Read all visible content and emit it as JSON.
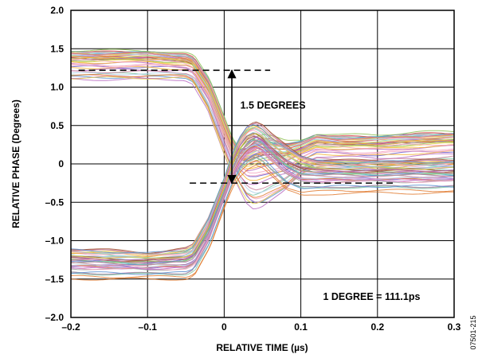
{
  "chart_data": {
    "type": "line",
    "xlabel": "RELATIVE TIME (µs)",
    "ylabel": "RELATIVE PHASE (Degrees)",
    "xlim": [
      -0.2,
      0.3
    ],
    "ylim": [
      -2.0,
      2.0
    ],
    "x_ticks": [
      -0.2,
      -0.1,
      0,
      0.1,
      0.2,
      0.3
    ],
    "x_tick_labels": [
      "–0.2",
      "–0.1",
      "0",
      "0.1",
      "0.2",
      "0.3"
    ],
    "y_ticks": [
      -2.0,
      -1.5,
      -1.0,
      -0.5,
      0,
      0.5,
      1.0,
      1.5,
      2.0
    ],
    "y_tick_labels": [
      "–2.0",
      "–1.5",
      "–1.0",
      "–0.5",
      "0",
      "0.5",
      "1.0",
      "1.5",
      "2.0"
    ],
    "grid": true,
    "envelope": {
      "description_series": "overlaid traces",
      "upper_group": {
        "x": [
          -0.2,
          -0.15,
          -0.1,
          -0.05,
          -0.04,
          -0.02,
          0.0,
          0.01,
          0.02,
          0.03,
          0.04,
          0.05,
          0.06,
          0.08,
          0.1,
          0.12,
          0.15,
          0.2,
          0.25,
          0.3
        ],
        "high": [
          1.48,
          1.48,
          1.48,
          1.44,
          1.4,
          1.1,
          0.6,
          0.35,
          0.2,
          0.25,
          0.35,
          0.38,
          0.36,
          0.3,
          0.32,
          0.4,
          0.38,
          0.38,
          0.42,
          0.42
        ],
        "low": [
          1.1,
          1.1,
          1.1,
          1.1,
          1.05,
          0.7,
          0.15,
          -0.1,
          -0.3,
          -0.5,
          -0.58,
          -0.55,
          -0.48,
          -0.35,
          -0.15,
          -0.05,
          -0.05,
          -0.08,
          -0.05,
          -0.02
        ]
      },
      "lower_group": {
        "x": [
          -0.2,
          -0.15,
          -0.1,
          -0.05,
          -0.04,
          -0.02,
          0.0,
          0.01,
          0.02,
          0.03,
          0.04,
          0.05,
          0.06,
          0.08,
          0.1,
          0.12,
          0.15,
          0.2,
          0.25,
          0.3
        ],
        "high": [
          -1.1,
          -1.12,
          -1.15,
          -1.1,
          -1.05,
          -0.7,
          -0.2,
          0.1,
          0.35,
          0.5,
          0.55,
          0.5,
          0.4,
          0.25,
          0.12,
          0.06,
          0.05,
          0.05,
          0.05,
          0.05
        ],
        "low": [
          -1.5,
          -1.5,
          -1.5,
          -1.5,
          -1.45,
          -1.1,
          -0.55,
          -0.3,
          -0.15,
          -0.05,
          0.0,
          -0.05,
          -0.15,
          -0.35,
          -0.42,
          -0.4,
          -0.38,
          -0.38,
          -0.38,
          -0.38
        ]
      }
    },
    "reference_levels": [
      {
        "y": 1.22,
        "x_start": -0.19,
        "x_end": 0.06
      },
      {
        "y": -0.25,
        "x_start": -0.045,
        "x_end": 0.22
      }
    ],
    "arrow": {
      "x": 0.01,
      "y_from": -0.25,
      "y_to": 1.22
    },
    "annotations": [
      {
        "text": "1.5 DEGREES",
        "x": 0.021,
        "y": 0.72
      },
      {
        "text": "1 DEGREE = 111.1ps",
        "x": 0.129,
        "y": -1.77
      }
    ],
    "figure_id": "07501-215",
    "trace_colors": [
      "#e07a2f",
      "#5b8fd1",
      "#8cbf4f",
      "#b86bc2",
      "#d9544d",
      "#4fb3bf",
      "#f2b134",
      "#9c9c9c",
      "#6a5acd",
      "#c97f9b",
      "#7fc6a4",
      "#e8d44d",
      "#a0522d",
      "#87ceeb",
      "#f4a3c0",
      "#b0d0e8"
    ]
  }
}
